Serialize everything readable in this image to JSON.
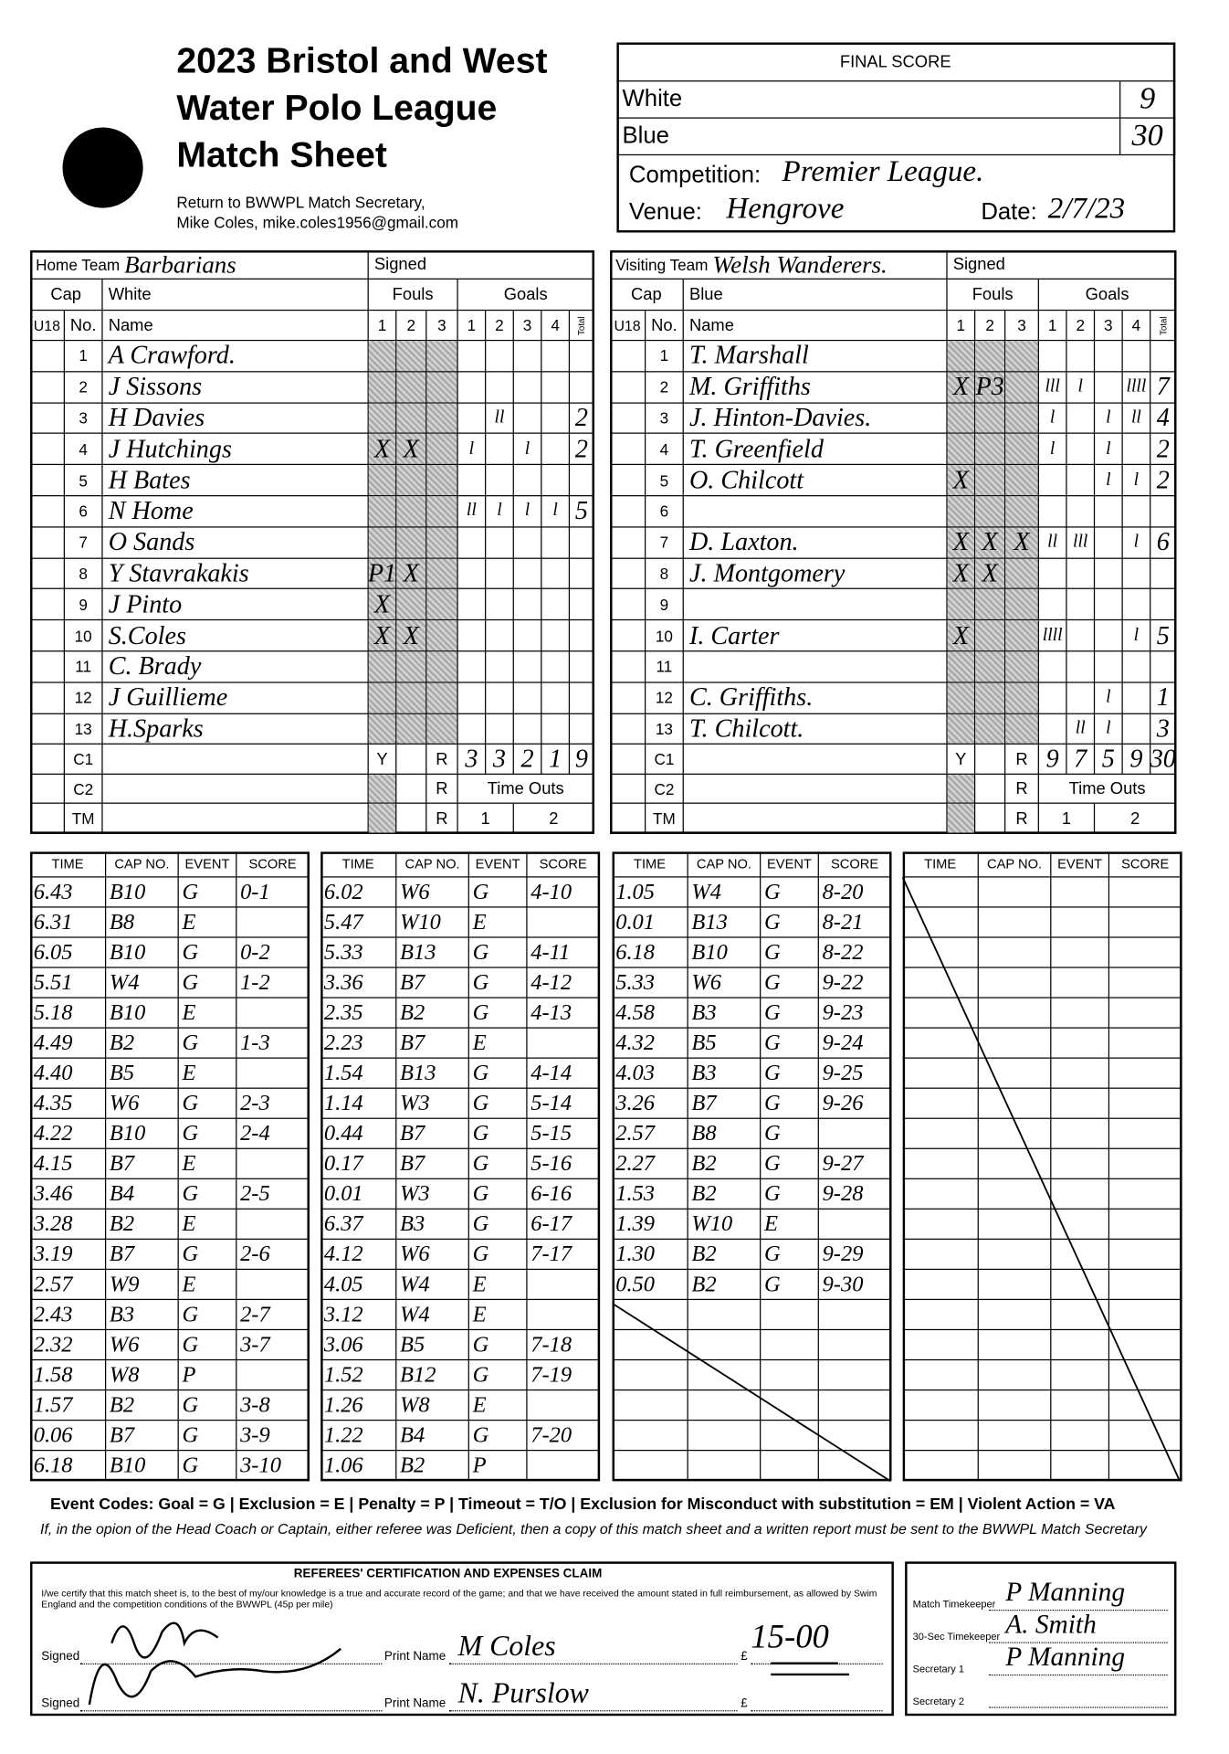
{
  "header": {
    "title": [
      "2023 Bristol and West",
      "Water Polo League",
      "Match Sheet"
    ],
    "return_to": [
      "Return to BWWPL Match Secretary,",
      "Mike Coles, mike.coles1956@gmail.com"
    ]
  },
  "final_score": {
    "title": "FINAL SCORE",
    "teams": [
      {
        "name": "White",
        "score": "9"
      },
      {
        "name": "Blue",
        "score": "30"
      }
    ],
    "competition_label": "Competition:",
    "competition": "Premier League.",
    "venue_label": "Venue:",
    "venue": "Hengrove",
    "date_label": "Date:",
    "date": "2/7/23"
  },
  "team_labels": {
    "signed": "Signed",
    "cap": "Cap",
    "fouls": "Fouls",
    "goals": "Goals",
    "u18": "U18",
    "no": "No.",
    "name": "Name",
    "quarters": [
      "1",
      "2",
      "3",
      "4"
    ],
    "total": "Total",
    "c1": "C1",
    "c2": "C2",
    "tm": "TM",
    "y": "Y",
    "r": "R",
    "time_outs": "Time Outs",
    "timeouts": [
      "1",
      "2"
    ]
  },
  "teams": [
    {
      "label": "Home Team",
      "name": "Barbarians",
      "cap_color": "White",
      "players": [
        {
          "no": "1",
          "name": "A Crawford."
        },
        {
          "no": "2",
          "name": "J Sissons"
        },
        {
          "no": "3",
          "name": "H Davies",
          "goals": {
            "2": "ll"
          },
          "total": "2"
        },
        {
          "no": "4",
          "name": "J Hutchings",
          "fouls": {
            "1": "X",
            "2": "X"
          },
          "goals": {
            "1": "l",
            "3": "l"
          },
          "total": "2"
        },
        {
          "no": "5",
          "name": "H Bates"
        },
        {
          "no": "6",
          "name": "N Home",
          "goals": {
            "1": "ll",
            "2": "l",
            "3": "l",
            "4": "l"
          },
          "total": "5"
        },
        {
          "no": "7",
          "name": "O Sands"
        },
        {
          "no": "8",
          "name": "Y Stavrakakis",
          "fouls": {
            "1": "P1",
            "2": "X"
          }
        },
        {
          "no": "9",
          "name": "J Pinto",
          "fouls": {
            "1": "X"
          }
        },
        {
          "no": "10",
          "name": "S.Coles",
          "fouls": {
            "1": "X",
            "2": "X"
          }
        },
        {
          "no": "11",
          "name": "C. Brady"
        },
        {
          "no": "12",
          "name": "J Guillieme"
        },
        {
          "no": "13",
          "name": "H.Sparks"
        }
      ],
      "totals": [
        "3",
        "3",
        "2",
        "1",
        "9"
      ]
    },
    {
      "label": "Visiting Team",
      "name": "Welsh Wanderers.",
      "cap_color": "Blue",
      "players": [
        {
          "no": "1",
          "name": "T. Marshall"
        },
        {
          "no": "2",
          "name": "M. Griffiths",
          "fouls": {
            "1": "X",
            "2": "P3"
          },
          "goals": {
            "1": "lll",
            "2": "l",
            "4": "llll"
          },
          "total": "7"
        },
        {
          "no": "3",
          "name": "J. Hinton-Davies.",
          "goals": {
            "1": "l",
            "3": "l",
            "4": "ll"
          },
          "total": "4"
        },
        {
          "no": "4",
          "name": "T. Greenfield",
          "goals": {
            "1": "l",
            "3": "l"
          },
          "total": "2"
        },
        {
          "no": "5",
          "name": "O. Chilcott",
          "fouls": {
            "1": "X"
          },
          "goals": {
            "3": "l",
            "4": "l"
          },
          "total": "2"
        },
        {
          "no": "6"
        },
        {
          "no": "7",
          "name": "D. Laxton.",
          "fouls": {
            "1": "X",
            "2": "X",
            "3": "X"
          },
          "goals": {
            "1": "ll",
            "2": "lll",
            "4": "l"
          },
          "total": "6"
        },
        {
          "no": "8",
          "name": "J. Montgomery",
          "fouls": {
            "1": "X",
            "2": "X"
          }
        },
        {
          "no": "9"
        },
        {
          "no": "10",
          "name": "I. Carter",
          "fouls": {
            "1": "X"
          },
          "goals": {
            "1": "llll",
            "4": "l"
          },
          "total": "5"
        },
        {
          "no": "11"
        },
        {
          "no": "12",
          "name": "C. Griffiths.",
          "goals": {
            "3": "l"
          },
          "total": "1"
        },
        {
          "no": "13",
          "name": "T. Chilcott.",
          "goals": {
            "2": "ll",
            "3": "l"
          },
          "total": "3"
        }
      ],
      "totals": [
        "9",
        "7",
        "5",
        "9",
        "30"
      ]
    }
  ],
  "events": {
    "header": [
      "TIME",
      "CAP NO.",
      "EVENT",
      "SCORE"
    ],
    "columns": [
      [
        [
          "6.43",
          "B10",
          "G",
          "0-1"
        ],
        [
          "6.31",
          "B8",
          "E"
        ],
        [
          "6.05",
          "B10",
          "G",
          "0-2"
        ],
        [
          "5.51",
          "W4",
          "G",
          "1-2"
        ],
        [
          "5.18",
          "B10",
          "E"
        ],
        [
          "4.49",
          "B2",
          "G",
          "1-3"
        ],
        [
          "4.40",
          "B5",
          "E"
        ],
        [
          "4.35",
          "W6",
          "G",
          "2-3"
        ],
        [
          "4.22",
          "B10",
          "G",
          "2-4"
        ],
        [
          "4.15",
          "B7",
          "E"
        ],
        [
          "3.46",
          "B4",
          "G",
          "2-5"
        ],
        [
          "3.28",
          "B2",
          "E"
        ],
        [
          "3.19",
          "B7",
          "G",
          "2-6"
        ],
        [
          "2.57",
          "W9",
          "E"
        ],
        [
          "2.43",
          "B3",
          "G",
          "2-7"
        ],
        [
          "2.32",
          "W6",
          "G",
          "3-7"
        ],
        [
          "1.58",
          "W8",
          "P"
        ],
        [
          "1.57",
          "B2",
          "G",
          "3-8"
        ],
        [
          "0.06",
          "B7",
          "G",
          "3-9"
        ],
        [
          "6.18",
          "B10",
          "G",
          "3-10"
        ]
      ],
      [
        [
          "6.02",
          "W6",
          "G",
          "4-10"
        ],
        [
          "5.47",
          "W10",
          "E"
        ],
        [
          "5.33",
          "B13",
          "G",
          "4-11"
        ],
        [
          "3.36",
          "B7",
          "G",
          "4-12"
        ],
        [
          "2.35",
          "B2",
          "G",
          "4-13"
        ],
        [
          "2.23",
          "B7",
          "E"
        ],
        [
          "1.54",
          "B13",
          "G",
          "4-14"
        ],
        [
          "1.14",
          "W3",
          "G",
          "5-14"
        ],
        [
          "0.44",
          "B7",
          "G",
          "5-15"
        ],
        [
          "0.17",
          "B7",
          "G",
          "5-16"
        ],
        [
          "0.01",
          "W3",
          "G",
          "6-16"
        ],
        [
          "6.37",
          "B3",
          "G",
          "6-17"
        ],
        [
          "4.12",
          "W6",
          "G",
          "7-17"
        ],
        [
          "4.05",
          "W4",
          "E"
        ],
        [
          "3.12",
          "W4",
          "E"
        ],
        [
          "3.06",
          "B5",
          "G",
          "7-18"
        ],
        [
          "1.52",
          "B12",
          "G",
          "7-19"
        ],
        [
          "1.26",
          "W8",
          "E"
        ],
        [
          "1.22",
          "B4",
          "G",
          "7-20"
        ],
        [
          "1.06",
          "B2",
          "P"
        ]
      ],
      [
        [
          "1.05",
          "W4",
          "G",
          "8-20"
        ],
        [
          "0.01",
          "B13",
          "G",
          "8-21"
        ],
        [
          "6.18",
          "B10",
          "G",
          "8-22"
        ],
        [
          "5.33",
          "W6",
          "G",
          "9-22"
        ],
        [
          "4.58",
          "B3",
          "G",
          "9-23"
        ],
        [
          "4.32",
          "B5",
          "G",
          "9-24"
        ],
        [
          "4.03",
          "B3",
          "G",
          "9-25"
        ],
        [
          "3.26",
          "B7",
          "G",
          "9-26"
        ],
        [
          "2.57",
          "B8",
          "G"
        ],
        [
          "2.27",
          "B2",
          "G",
          "9-27"
        ],
        [
          "1.53",
          "B2",
          "G",
          "9-28"
        ],
        [
          "1.39",
          "W10",
          "E"
        ],
        [
          "1.30",
          "B2",
          "G",
          "9-29"
        ],
        [
          "0.50",
          "B2",
          "G",
          "9-30"
        ]
      ]
    ]
  },
  "footer": {
    "event_codes": "Event Codes: Goal = G | Exclusion = E | Penalty = P | Timeout = T/O | Exclusion for Misconduct with substitution = EM | Violent Action = VA",
    "note": "If, in the opion of the Head Coach or Captain, either referee was Deficient, then a copy of this match sheet and a written report must be sent to the BWWPL Match Secretary"
  },
  "referees": {
    "title": "REFEREES' CERTIFICATION AND EXPENSES CLAIM",
    "text": "I/we certify that this match sheet is, to the best of my/our knowledge is a true and accurate record of the game; and that we have received the amount stated in full reimbursement, as allowed by Swim England and the competition conditions of the BWWPL (45p per mile)",
    "rows": [
      {
        "signed_label": "Signed",
        "print_label": "Print Name",
        "print_name": "M Coles",
        "currency": "£",
        "amount": "15-00"
      },
      {
        "signed_label": "Signed",
        "print_label": "Print Name",
        "print_name": "N. Purslow",
        "currency": "£"
      }
    ]
  },
  "officials": [
    {
      "role": "Match Timekeeper",
      "name": "P Manning"
    },
    {
      "role": "30-Sec Timekeeper",
      "name": "A. Smith"
    },
    {
      "role": "Secretary 1",
      "name": "P Manning"
    },
    {
      "role": "Secretary 2"
    }
  ]
}
